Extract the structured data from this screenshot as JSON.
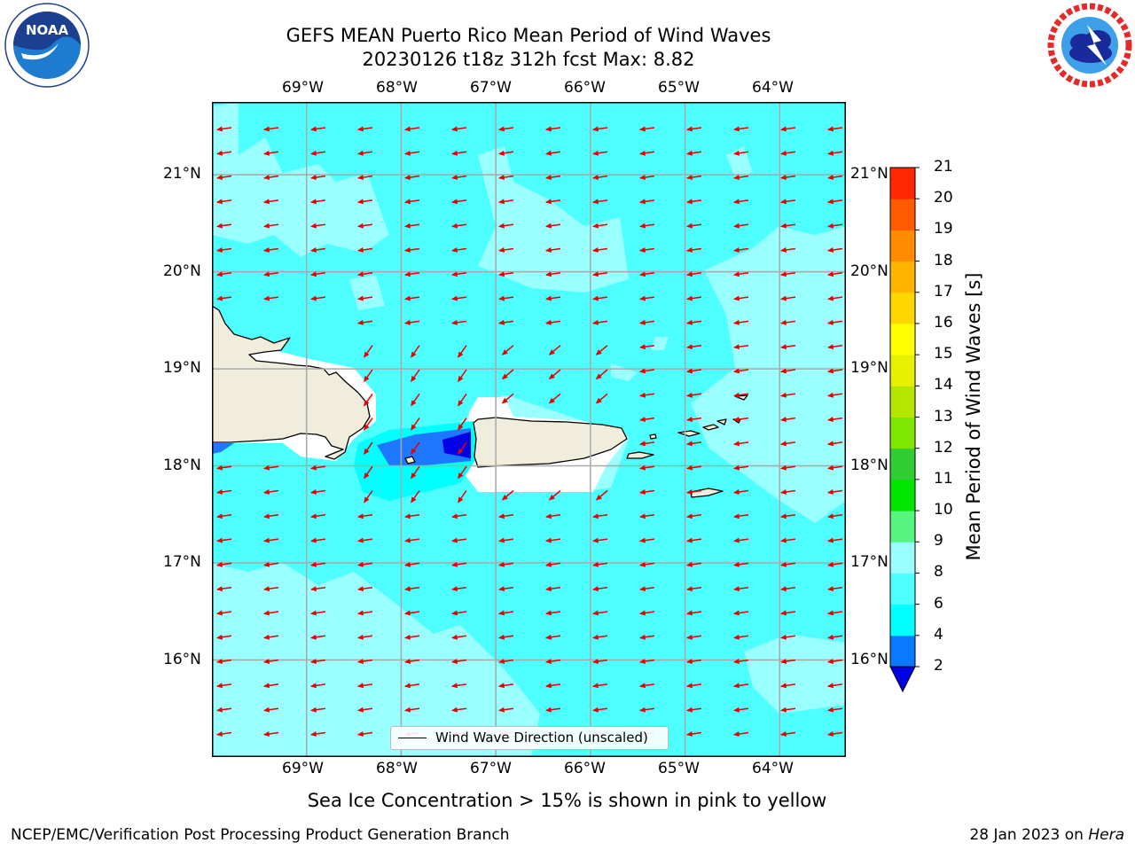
{
  "header": {
    "title_line1": "GEFS MEAN Puerto Rico Mean Period of Wind Waves",
    "title_line2": "20230126 t18z 312h fcst   Max: 8.82"
  },
  "logos": {
    "left": "noaa-logo",
    "right": "nws-logo"
  },
  "map": {
    "lon_ticks": [
      "69°W",
      "68°W",
      "67°W",
      "66°W",
      "65°W",
      "64°W"
    ],
    "lat_ticks": [
      "21°N",
      "20°N",
      "19°N",
      "18°N",
      "17°N",
      "16°N"
    ],
    "colors": {
      "sea_main": "#4dffff",
      "sea_light": "#99ffff",
      "sea_mid": "#00ffff",
      "sea_blue": "#1e78ff",
      "sea_deep": "#0000e6",
      "land": "#f0eddc",
      "grid": "#a8a8a8",
      "arrow": "#e60000"
    },
    "legend_label": "Wind Wave Direction (unscaled)"
  },
  "chart_data": {
    "type": "heatmap",
    "title": "GEFS MEAN Puerto Rico Mean Period of Wind Waves",
    "subtitle": "20230126 t18z 312h fcst   Max: 8.82",
    "lon_range": [
      -70.0,
      -63.3
    ],
    "lat_range": [
      15.0,
      21.75
    ],
    "colorbar": {
      "label": "Mean Period of Wind Waves [s]",
      "levels": [
        2,
        4,
        6,
        8,
        9,
        10,
        11,
        12,
        13,
        14,
        15,
        16,
        17,
        18,
        19,
        20,
        21
      ],
      "colors": [
        "#0a78ff",
        "#00ffff",
        "#4dffff",
        "#99ffff",
        "#55f580",
        "#00e600",
        "#32cd32",
        "#7fe600",
        "#b4e600",
        "#e6f000",
        "#ffff00",
        "#ffd700",
        "#ffb400",
        "#ff8c00",
        "#ff5a00",
        "#ff2800"
      ],
      "under_color": "#0000e6",
      "extend": "min"
    },
    "max_value": 8.82,
    "wind_wave_direction": "toward west-southwest",
    "grid": true
  },
  "notes": {
    "sea_ice": "Sea Ice Concentration > 15% is shown in pink to yellow"
  },
  "footer": {
    "left": "NCEP/EMC/Verification Post Processing Product Generation Branch",
    "date": "28 Jan 2023 on ",
    "host": "Hera"
  }
}
